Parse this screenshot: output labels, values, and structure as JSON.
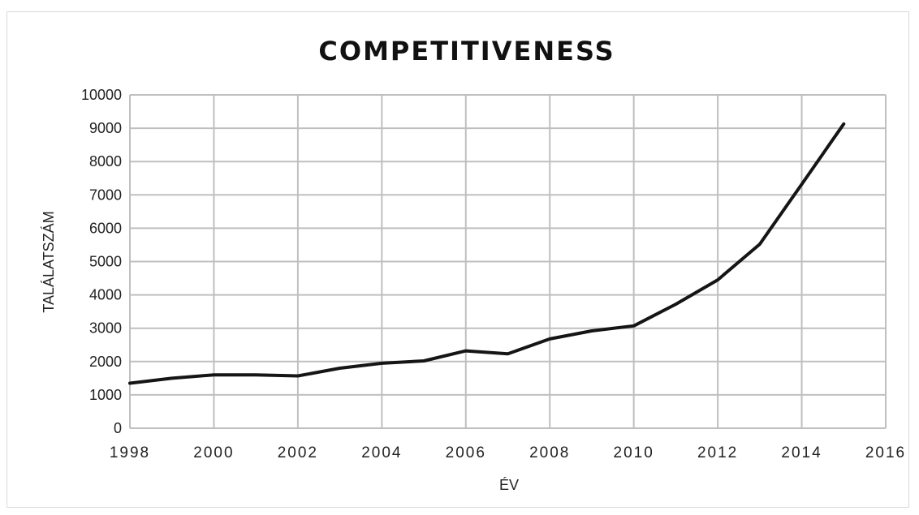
{
  "chart_data": {
    "type": "line",
    "title": "COMPETITIVENESS",
    "xlabel": "ÉV",
    "ylabel": "TALÁLATSZÁM",
    "xlim": [
      1998,
      2016
    ],
    "ylim": [
      0,
      10000
    ],
    "x_ticks": [
      "1998",
      "2000",
      "2002",
      "2004",
      "2006",
      "2008",
      "2010",
      "2012",
      "2014",
      "2016"
    ],
    "y_ticks": [
      "0",
      "1000",
      "2000",
      "3000",
      "4000",
      "5000",
      "6000",
      "7000",
      "8000",
      "9000",
      "10000"
    ],
    "grid": true,
    "legend": "none",
    "colors": {
      "line": "#151515",
      "grid": "#bfbfbf"
    },
    "series": [
      {
        "x": [
          1998,
          1999,
          2000,
          2001,
          2002,
          2003,
          2004,
          2005,
          2006,
          2007,
          2008,
          2009,
          2010,
          2011,
          2012,
          2013,
          2014,
          2015
        ],
        "values": [
          1350,
          1500,
          1600,
          1600,
          1570,
          1800,
          1950,
          2020,
          2320,
          2230,
          2680,
          2920,
          3070,
          3720,
          4450,
          5520,
          7320,
          9130
        ]
      }
    ]
  }
}
